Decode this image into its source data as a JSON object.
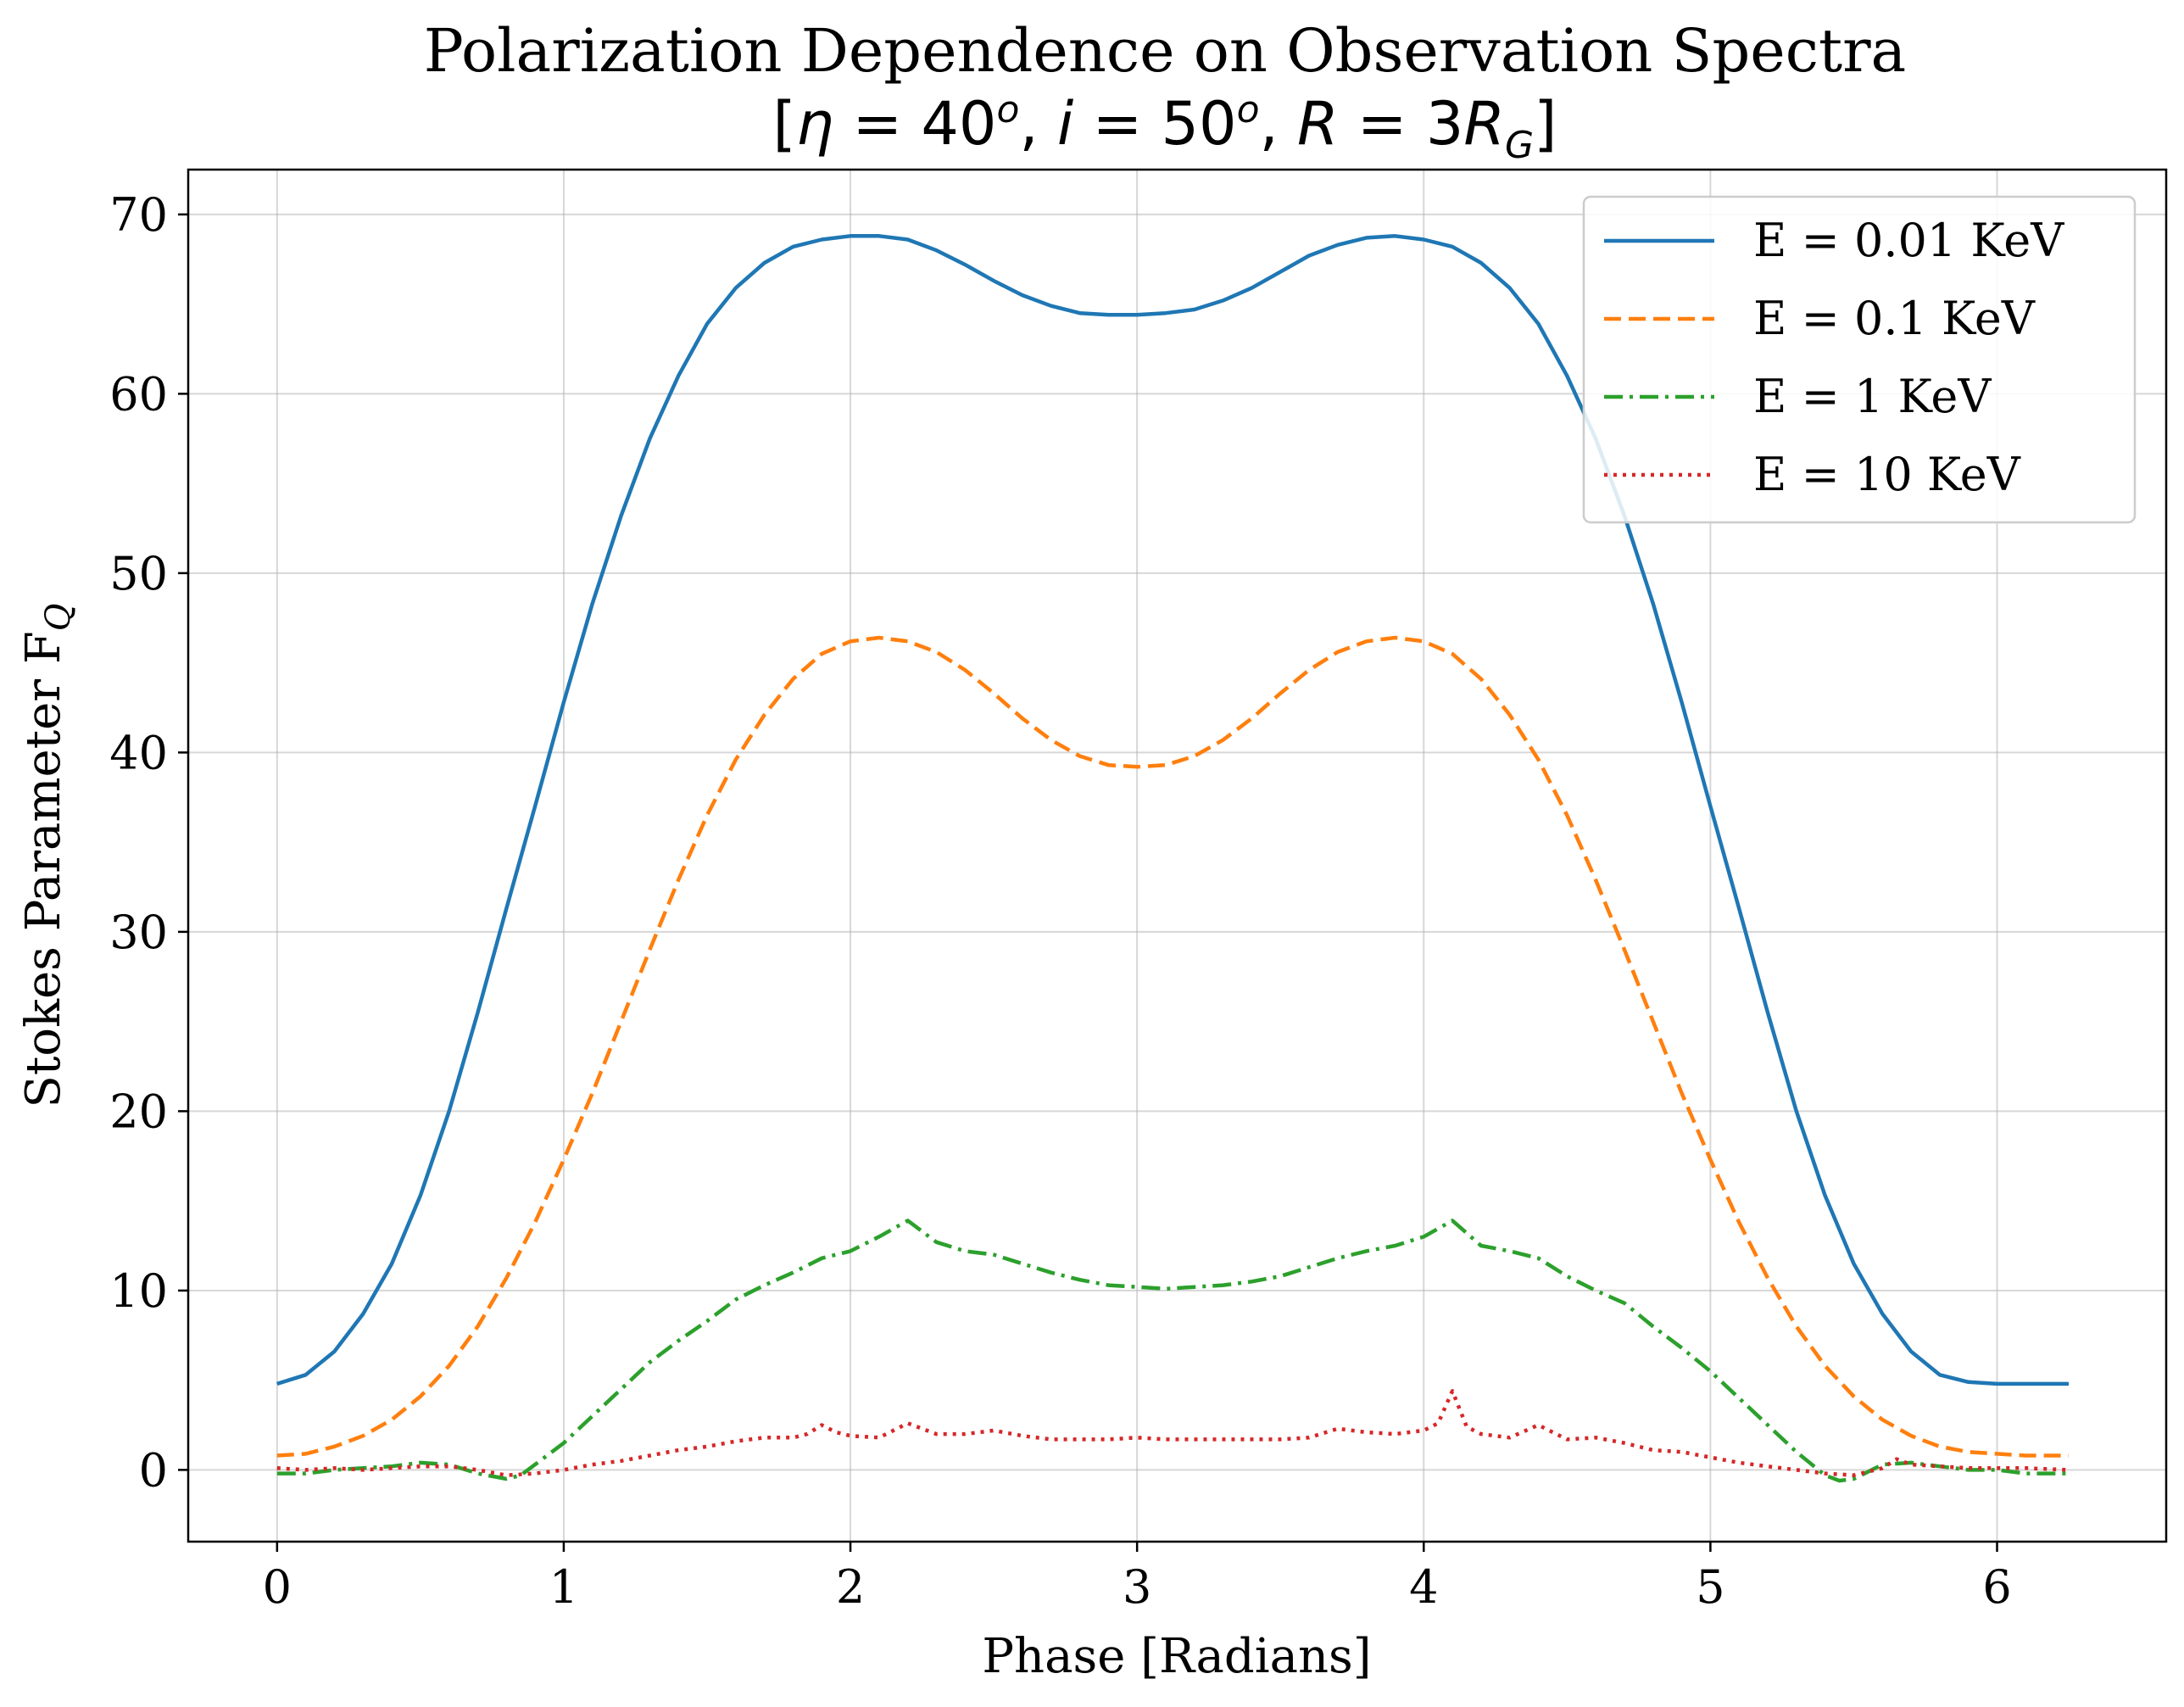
{
  "chart_data": {
    "type": "line",
    "title": "Polarization Dependence on Observation Spectra",
    "subtitle": "[η = 40°, i = 50°, R = 3R_G]",
    "subtitle_parts": {
      "open": "[",
      "eta": "η",
      "eta_value": " = 40",
      "deg1": "o",
      "sep1": ", ",
      "inc": "i",
      "inc_value": " = 50",
      "deg2": "o",
      "sep2": ", ",
      "radius": "R",
      "radius_eq": " = 3",
      "radius_sym": "R",
      "radius_sub": "G",
      "close": "]"
    },
    "xlabel": "Phase [Radians]",
    "ylabel_main": "Stokes Parameter F",
    "ylabel_sub": "Q",
    "xlim": [
      -0.31,
      6.59
    ],
    "ylim": [
      -4,
      72.5
    ],
    "xticks": [
      0,
      1,
      2,
      3,
      4,
      5,
      6
    ],
    "yticks": [
      0,
      10,
      20,
      30,
      40,
      50,
      60,
      70
    ],
    "grid": true,
    "legend_position": "top-right",
    "series": [
      {
        "name": "E = 0.01 KeV",
        "color": "#1f77b4",
        "dash": "solid",
        "x": [
          0,
          0.1,
          0.2,
          0.3,
          0.4,
          0.5,
          0.6,
          0.7,
          0.8,
          0.9,
          1.0,
          1.1,
          1.2,
          1.3,
          1.4,
          1.5,
          1.6,
          1.7,
          1.8,
          1.9,
          2.0,
          2.1,
          2.2,
          2.3,
          2.4,
          2.5,
          2.6,
          2.7,
          2.8,
          2.9,
          3.0,
          3.1,
          3.2,
          3.3,
          3.4,
          3.5,
          3.6,
          3.7,
          3.8,
          3.9,
          4.0,
          4.1,
          4.2,
          4.3,
          4.4,
          4.5,
          4.6,
          4.7,
          4.8,
          4.9,
          5.0,
          5.1,
          5.2,
          5.3,
          5.4,
          5.5,
          5.6,
          5.7,
          5.8,
          5.9,
          6.0,
          6.1,
          6.2,
          6.25
        ],
        "y": [
          4.8,
          5.3,
          6.6,
          8.7,
          11.5,
          15.3,
          20.0,
          25.5,
          31.3,
          37.0,
          42.8,
          48.3,
          53.2,
          57.5,
          61.0,
          63.9,
          65.9,
          67.3,
          68.2,
          68.6,
          68.8,
          68.8,
          68.6,
          68.0,
          67.2,
          66.3,
          65.5,
          64.9,
          64.5,
          64.4,
          64.4,
          64.5,
          64.7,
          65.2,
          65.9,
          66.8,
          67.7,
          68.3,
          68.7,
          68.8,
          68.6,
          68.2,
          67.3,
          65.9,
          63.9,
          61.0,
          57.5,
          53.2,
          48.3,
          42.8,
          37.0,
          31.3,
          25.5,
          20.0,
          15.3,
          11.5,
          8.7,
          6.6,
          5.3,
          4.9,
          4.8,
          4.8,
          4.8,
          4.8
        ]
      },
      {
        "name": "E = 0.1 KeV",
        "color": "#ff7f0e",
        "dash": "dashed",
        "x": [
          0,
          0.1,
          0.2,
          0.3,
          0.4,
          0.5,
          0.6,
          0.7,
          0.8,
          0.9,
          1.0,
          1.1,
          1.2,
          1.3,
          1.4,
          1.5,
          1.6,
          1.7,
          1.8,
          1.9,
          2.0,
          2.1,
          2.2,
          2.3,
          2.4,
          2.5,
          2.6,
          2.7,
          2.8,
          2.9,
          3.0,
          3.1,
          3.2,
          3.3,
          3.4,
          3.5,
          3.6,
          3.7,
          3.8,
          3.9,
          4.0,
          4.1,
          4.2,
          4.3,
          4.4,
          4.5,
          4.6,
          4.7,
          4.8,
          4.9,
          5.0,
          5.1,
          5.2,
          5.3,
          5.4,
          5.5,
          5.6,
          5.7,
          5.8,
          5.9,
          6.0,
          6.1,
          6.2,
          6.25
        ],
        "y": [
          0.8,
          0.9,
          1.3,
          1.9,
          2.8,
          4.1,
          5.8,
          8.0,
          10.7,
          13.8,
          17.3,
          21.0,
          25.0,
          29.0,
          32.9,
          36.5,
          39.6,
          42.1,
          44.1,
          45.5,
          46.2,
          46.4,
          46.2,
          45.6,
          44.6,
          43.3,
          41.9,
          40.7,
          39.8,
          39.3,
          39.2,
          39.3,
          39.8,
          40.7,
          41.9,
          43.3,
          44.6,
          45.6,
          46.2,
          46.4,
          46.2,
          45.5,
          44.1,
          42.1,
          39.6,
          36.5,
          32.9,
          29.0,
          25.0,
          21.0,
          17.3,
          13.8,
          10.7,
          8.0,
          5.8,
          4.1,
          2.8,
          1.9,
          1.3,
          1.0,
          0.9,
          0.8,
          0.8,
          0.8
        ]
      },
      {
        "name": "E = 1 KeV",
        "color": "#2ca02c",
        "dash": "dashdot",
        "x": [
          0,
          0.1,
          0.2,
          0.3,
          0.4,
          0.5,
          0.6,
          0.7,
          0.8,
          0.85,
          0.9,
          1.0,
          1.1,
          1.2,
          1.3,
          1.4,
          1.5,
          1.6,
          1.7,
          1.8,
          1.9,
          2.0,
          2.1,
          2.2,
          2.3,
          2.4,
          2.5,
          2.6,
          2.7,
          2.8,
          2.9,
          3.0,
          3.1,
          3.2,
          3.3,
          3.4,
          3.5,
          3.6,
          3.7,
          3.8,
          3.9,
          4.0,
          4.1,
          4.2,
          4.3,
          4.4,
          4.5,
          4.6,
          4.7,
          4.8,
          4.9,
          5.0,
          5.1,
          5.2,
          5.3,
          5.4,
          5.45,
          5.5,
          5.6,
          5.7,
          5.8,
          5.9,
          6.0,
          6.1,
          6.25
        ],
        "y": [
          -0.2,
          -0.2,
          0.0,
          0.1,
          0.2,
          0.4,
          0.3,
          -0.2,
          -0.5,
          -0.3,
          0.3,
          1.5,
          3.0,
          4.5,
          6.0,
          7.2,
          8.3,
          9.5,
          10.3,
          11.0,
          11.8,
          12.2,
          13.0,
          13.9,
          12.7,
          12.2,
          12.0,
          11.5,
          11.0,
          10.6,
          10.3,
          10.2,
          10.1,
          10.2,
          10.3,
          10.5,
          10.8,
          11.3,
          11.8,
          12.2,
          12.5,
          13.0,
          13.9,
          12.5,
          12.2,
          11.8,
          10.8,
          10.0,
          9.3,
          8.0,
          6.8,
          5.5,
          4.0,
          2.5,
          1.0,
          -0.3,
          -0.6,
          -0.5,
          0.3,
          0.4,
          0.2,
          0.0,
          0.0,
          -0.2,
          -0.2
        ]
      },
      {
        "name": "E = 10 KeV",
        "color": "#d62728",
        "dash": "dotted",
        "x": [
          0,
          0.1,
          0.2,
          0.3,
          0.4,
          0.5,
          0.6,
          0.7,
          0.8,
          0.9,
          1.0,
          1.1,
          1.2,
          1.3,
          1.4,
          1.5,
          1.6,
          1.7,
          1.8,
          1.85,
          1.9,
          1.95,
          2.0,
          2.1,
          2.2,
          2.3,
          2.4,
          2.5,
          2.6,
          2.7,
          2.8,
          2.9,
          3.0,
          3.1,
          3.2,
          3.3,
          3.4,
          3.5,
          3.6,
          3.7,
          3.8,
          3.9,
          4.0,
          4.05,
          4.1,
          4.15,
          4.2,
          4.3,
          4.4,
          4.5,
          4.6,
          4.7,
          4.8,
          4.9,
          5.0,
          5.1,
          5.2,
          5.3,
          5.4,
          5.5,
          5.6,
          5.65,
          5.7,
          5.8,
          5.9,
          6.0,
          6.1,
          6.25
        ],
        "y": [
          0.1,
          0.0,
          0.1,
          0.0,
          0.1,
          0.2,
          0.2,
          0.0,
          -0.3,
          -0.2,
          0.0,
          0.3,
          0.5,
          0.8,
          1.1,
          1.3,
          1.6,
          1.8,
          1.8,
          2.0,
          2.5,
          2.1,
          1.9,
          1.8,
          2.6,
          2.0,
          2.0,
          2.2,
          1.9,
          1.7,
          1.7,
          1.7,
          1.8,
          1.7,
          1.7,
          1.7,
          1.7,
          1.7,
          1.8,
          2.3,
          2.1,
          2.0,
          2.2,
          2.6,
          4.4,
          2.4,
          2.0,
          1.8,
          2.5,
          1.7,
          1.8,
          1.5,
          1.1,
          1.0,
          0.7,
          0.4,
          0.2,
          0.0,
          -0.2,
          -0.3,
          0.1,
          0.6,
          0.3,
          0.2,
          0.1,
          0.1,
          0.1,
          0.0
        ]
      }
    ]
  }
}
